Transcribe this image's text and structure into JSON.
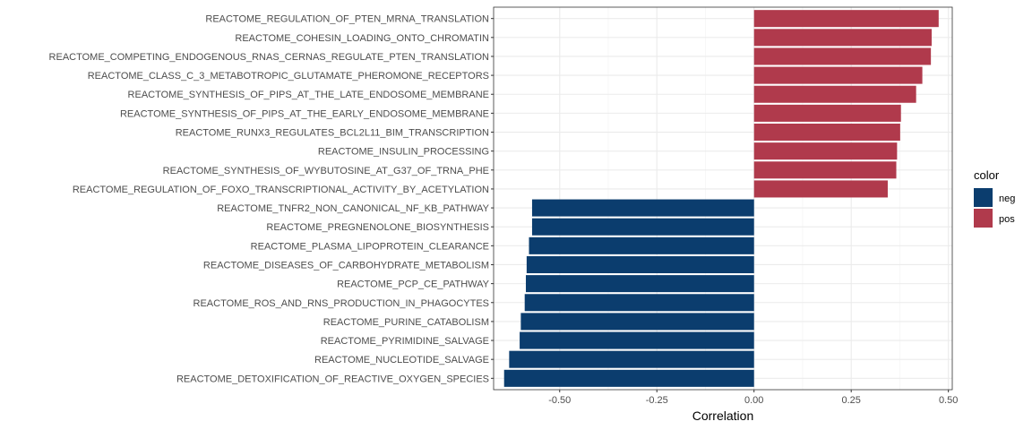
{
  "chart_data": {
    "type": "bar",
    "orientation": "horizontal",
    "xlabel": "Correlation",
    "ylabel": "",
    "xlim": [
      -0.67,
      0.51
    ],
    "xticks": [
      -0.5,
      -0.25,
      0.0,
      0.25,
      0.5
    ],
    "xtick_labels": [
      "-0.50",
      "-0.25",
      "0.00",
      "0.25",
      "0.50"
    ],
    "grid": true,
    "legend": {
      "title": "color",
      "position": "right",
      "entries": [
        {
          "label": "neg",
          "color": "#0b3d6e"
        },
        {
          "label": "pos",
          "color": "#b03a4c"
        }
      ]
    },
    "categories": [
      "REACTOME_REGULATION_OF_PTEN_MRNA_TRANSLATION",
      "REACTOME_COHESIN_LOADING_ONTO_CHROMATIN",
      "REACTOME_COMPETING_ENDOGENOUS_RNAS_CERNAS_REGULATE_PTEN_TRANSLATION",
      "REACTOME_CLASS_C_3_METABOTROPIC_GLUTAMATE_PHEROMONE_RECEPTORS",
      "REACTOME_SYNTHESIS_OF_PIPS_AT_THE_LATE_ENDOSOME_MEMBRANE",
      "REACTOME_SYNTHESIS_OF_PIPS_AT_THE_EARLY_ENDOSOME_MEMBRANE",
      "REACTOME_RUNX3_REGULATES_BCL2L11_BIM_TRANSCRIPTION",
      "REACTOME_INSULIN_PROCESSING",
      "REACTOME_SYNTHESIS_OF_WYBUTOSINE_AT_G37_OF_TRNA_PHE",
      "REACTOME_REGULATION_OF_FOXO_TRANSCRIPTIONAL_ACTIVITY_BY_ACETYLATION",
      "REACTOME_TNFR2_NON_CANONICAL_NF_KB_PATHWAY",
      "REACTOME_PREGNENOLONE_BIOSYNTHESIS",
      "REACTOME_PLASMA_LIPOPROTEIN_CLEARANCE",
      "REACTOME_DISEASES_OF_CARBOHYDRATE_METABOLISM",
      "REACTOME_PCP_CE_PATHWAY",
      "REACTOME_ROS_AND_RNS_PRODUCTION_IN_PHAGOCYTES",
      "REACTOME_PURINE_CATABOLISM",
      "REACTOME_PYRIMIDINE_SALVAGE",
      "REACTOME_NUCLEOTIDE_SALVAGE",
      "REACTOME_DETOXIFICATION_OF_REACTIVE_OXYGEN_SPECIES"
    ],
    "values": [
      0.475,
      0.457,
      0.455,
      0.433,
      0.417,
      0.378,
      0.376,
      0.368,
      0.366,
      0.344,
      -0.571,
      -0.571,
      -0.579,
      -0.585,
      -0.587,
      -0.59,
      -0.6,
      -0.603,
      -0.63,
      -0.643
    ],
    "groups": [
      "pos",
      "pos",
      "pos",
      "pos",
      "pos",
      "pos",
      "pos",
      "pos",
      "pos",
      "pos",
      "neg",
      "neg",
      "neg",
      "neg",
      "neg",
      "neg",
      "neg",
      "neg",
      "neg",
      "neg"
    ]
  }
}
